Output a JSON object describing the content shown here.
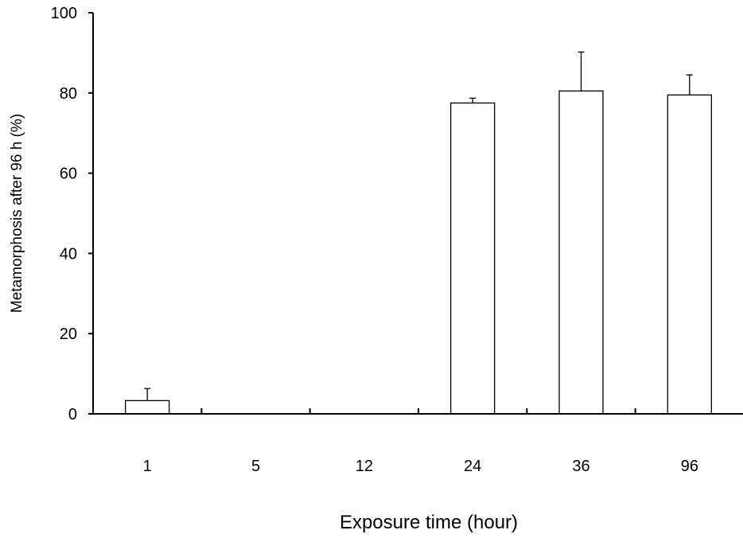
{
  "chart_data": {
    "type": "bar",
    "title": "",
    "xlabel": "Exposure time (hour)",
    "ylabel": "Metamorphosis after 96 h (%)",
    "categories": [
      "1",
      "5",
      "12",
      "24",
      "36",
      "96"
    ],
    "values": [
      3.3,
      0,
      0,
      77.5,
      80.5,
      79.5
    ],
    "errors": [
      3,
      0,
      0,
      1.2,
      9.7,
      5
    ],
    "ylim": [
      0,
      100
    ],
    "yticks": [
      0,
      20,
      40,
      60,
      80,
      100
    ],
    "grid": false,
    "legend": "none",
    "colors": {
      "bar_fill": "#ffffff",
      "bar_stroke": "#000000",
      "axis": "#000000"
    }
  }
}
